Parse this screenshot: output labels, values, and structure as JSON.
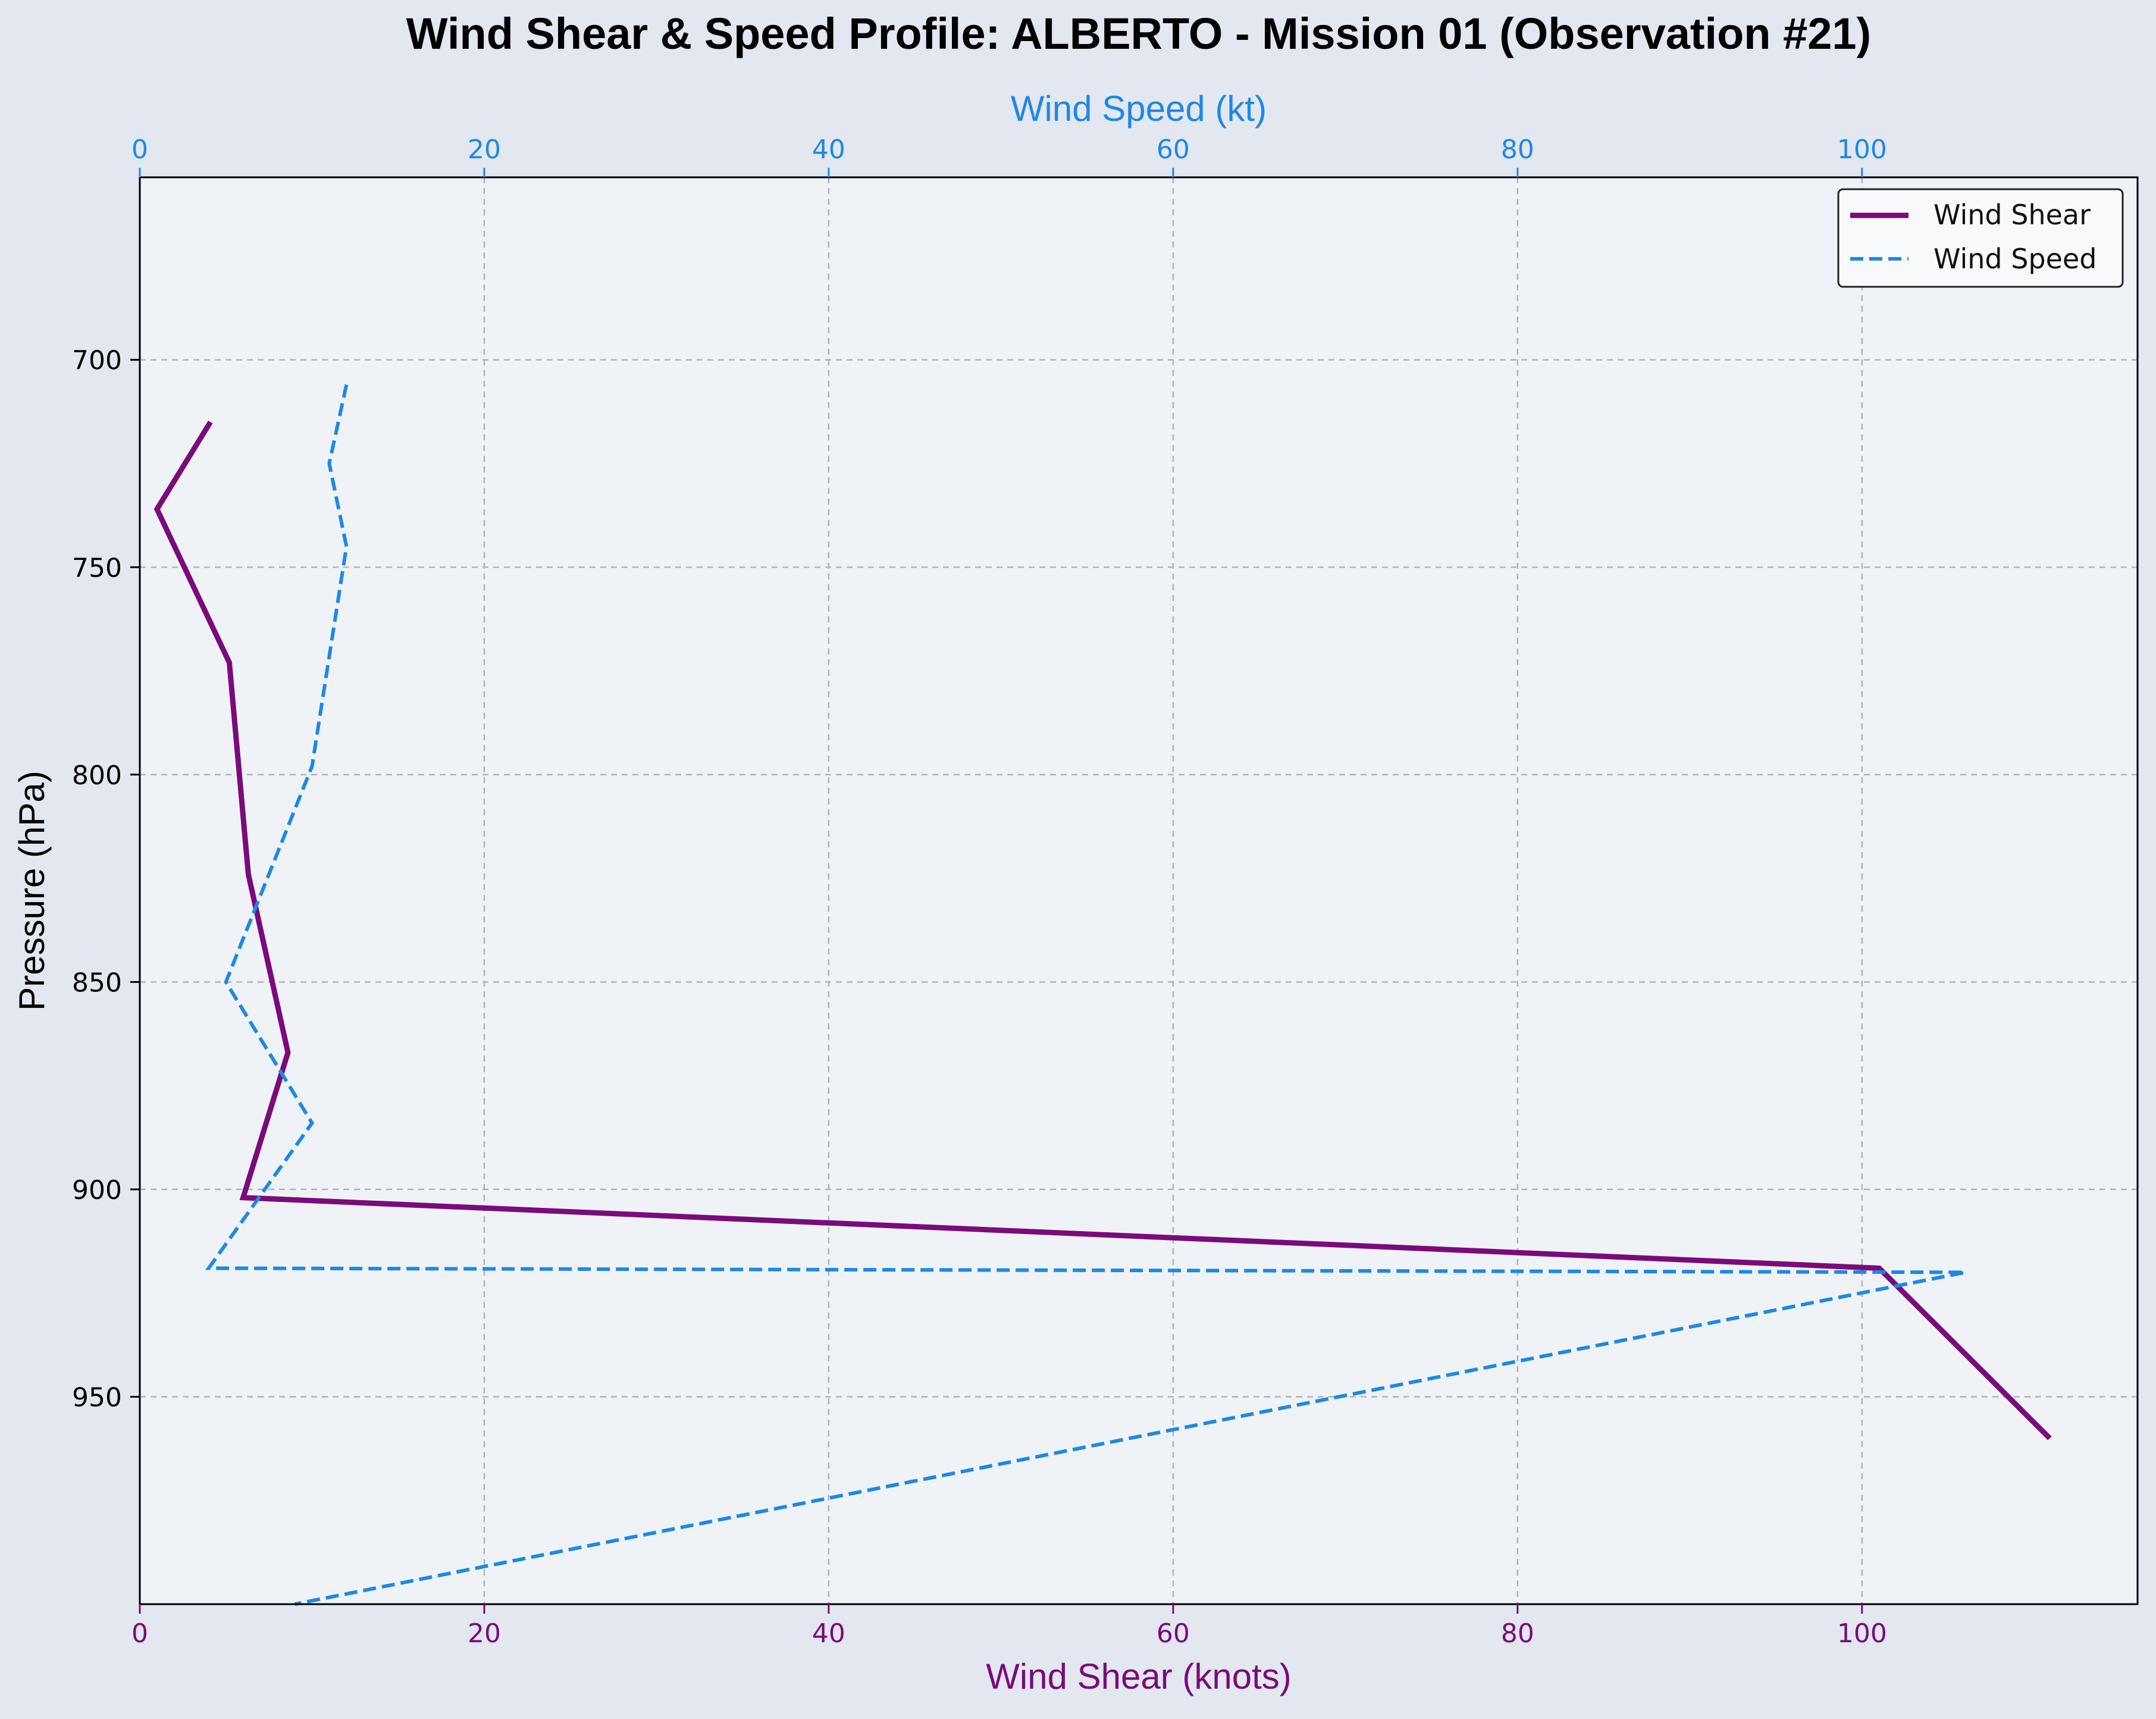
{
  "chart_data": {
    "type": "line",
    "title": "Wind Shear & Speed Profile: ALBERTO - Mission 01 (Observation #21)",
    "xlabel": "Wind Shear (knots)",
    "x2label": "Wind Speed (kt)",
    "ylabel": "Pressure (hPa)",
    "xlim": [
      0,
      116
    ],
    "x2lim": [
      0,
      116
    ],
    "ylim": [
      1000,
      656
    ],
    "y_inverted": true,
    "grid": true,
    "legend_position": "upper right",
    "x_ticks": [
      0,
      20,
      40,
      60,
      80,
      100
    ],
    "x2_ticks": [
      0,
      20,
      40,
      60,
      80,
      100
    ],
    "y_ticks": [
      700,
      750,
      800,
      850,
      900,
      950
    ],
    "series": [
      {
        "name": "Wind Shear",
        "axis": "bottom",
        "color": "#7b0a7b",
        "style": "solid",
        "points": [
          {
            "x": 4.1,
            "y": 715
          },
          {
            "x": 1.0,
            "y": 736
          },
          {
            "x": 5.2,
            "y": 773
          },
          {
            "x": 6.3,
            "y": 824
          },
          {
            "x": 8.6,
            "y": 867
          },
          {
            "x": 6.0,
            "y": 902
          },
          {
            "x": 101.0,
            "y": 919
          },
          {
            "x": 110.9,
            "y": 960
          }
        ]
      },
      {
        "name": "Wind Speed",
        "axis": "top",
        "color": "#1e88e5",
        "style": "dashed",
        "points": [
          {
            "x": 12.0,
            "y": 706
          },
          {
            "x": 11.0,
            "y": 725
          },
          {
            "x": 12.0,
            "y": 745
          },
          {
            "x": 10.0,
            "y": 798
          },
          {
            "x": 5.0,
            "y": 850
          },
          {
            "x": 10.0,
            "y": 884
          },
          {
            "x": 4.0,
            "y": 919
          },
          {
            "x": 106.0,
            "y": 920
          },
          {
            "x": 9.0,
            "y": 1000
          }
        ]
      }
    ]
  }
}
